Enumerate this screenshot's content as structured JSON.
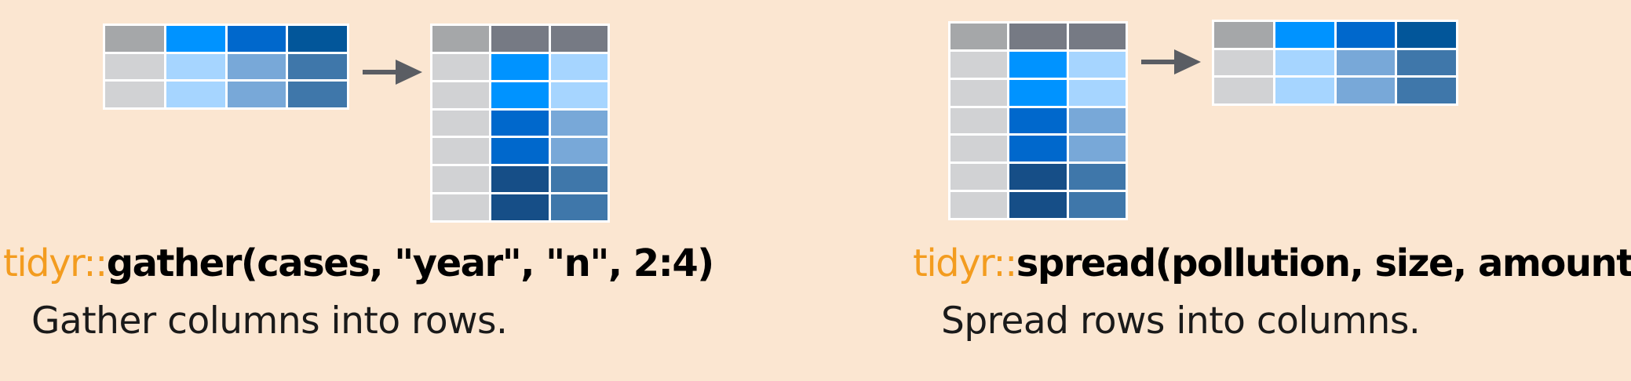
{
  "colors": {
    "background": "#fbe6d1",
    "package_prefix": "#f39c1f",
    "arrow": "#5a5d63"
  },
  "gather": {
    "package": "tidyr::",
    "call": "gather(cases, \"year\", \"n\", 2:4)",
    "description": "Gather columns into rows.",
    "input_table": [
      [
        "#a5a7a9",
        "#0093ff",
        "#0068cc",
        "#02569a"
      ],
      [
        "#d1d2d4",
        "#a6d5ff",
        "#78a8d8",
        "#3f77aa"
      ],
      [
        "#d1d2d4",
        "#a6d5ff",
        "#78a8d8",
        "#3f77aa"
      ]
    ],
    "output_table": [
      [
        "#a5a7a9",
        "#767a84",
        "#767a84"
      ],
      [
        "#d1d2d4",
        "#0093ff",
        "#a6d5ff"
      ],
      [
        "#d1d2d4",
        "#0093ff",
        "#a6d5ff"
      ],
      [
        "#d1d2d4",
        "#0068cc",
        "#78a8d8"
      ],
      [
        "#d1d2d4",
        "#0068cc",
        "#78a8d8"
      ],
      [
        "#d1d2d4",
        "#164e87",
        "#3f77aa"
      ],
      [
        "#d1d2d4",
        "#164e87",
        "#3f77aa"
      ]
    ]
  },
  "spread": {
    "package": "tidyr::",
    "call": "spread(pollution, size, amount)",
    "description": "Spread rows into columns.",
    "input_table": [
      [
        "#a5a7a9",
        "#767a84",
        "#767a84"
      ],
      [
        "#d1d2d4",
        "#0093ff",
        "#a6d5ff"
      ],
      [
        "#d1d2d4",
        "#0093ff",
        "#a6d5ff"
      ],
      [
        "#d1d2d4",
        "#0068cc",
        "#78a8d8"
      ],
      [
        "#d1d2d4",
        "#0068cc",
        "#78a8d8"
      ],
      [
        "#d1d2d4",
        "#164e87",
        "#3f77aa"
      ],
      [
        "#d1d2d4",
        "#164e87",
        "#3f77aa"
      ]
    ],
    "output_table": [
      [
        "#a5a7a9",
        "#0093ff",
        "#0068cc",
        "#02569a"
      ],
      [
        "#d1d2d4",
        "#a6d5ff",
        "#78a8d8",
        "#3f77aa"
      ],
      [
        "#d1d2d4",
        "#a6d5ff",
        "#78a8d8",
        "#3f77aa"
      ]
    ]
  }
}
